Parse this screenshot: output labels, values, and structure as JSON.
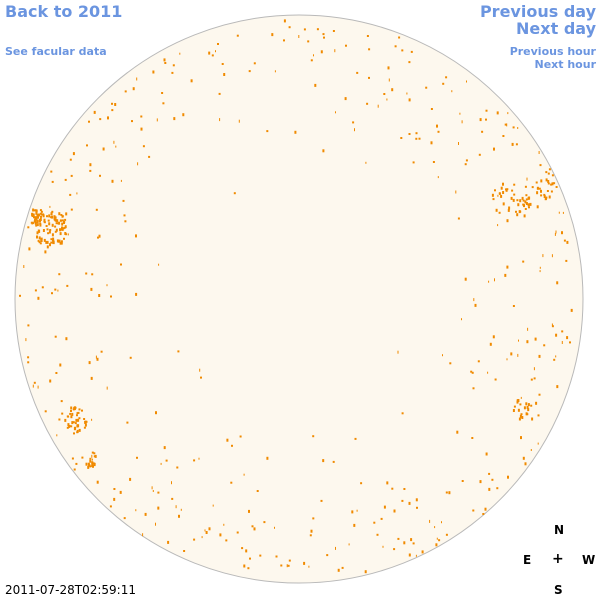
{
  "nav": {
    "back_label": "Back to 2011",
    "facular_label": "See facular data",
    "prev_day_label": "Previous day",
    "next_day_label": "Next day",
    "prev_hour_label": "Previous hour",
    "next_hour_label": "Next hour"
  },
  "compass": {
    "north": "N",
    "east": "E",
    "center": "+",
    "west": "W",
    "south": "S"
  },
  "timestamp": "2011-07-28T02:59:11",
  "colors": {
    "link": "#6b95e0",
    "disk_fill": "#fdf8ee",
    "disk_stroke": "#b9b9b9",
    "feature": "#f08a00"
  }
}
